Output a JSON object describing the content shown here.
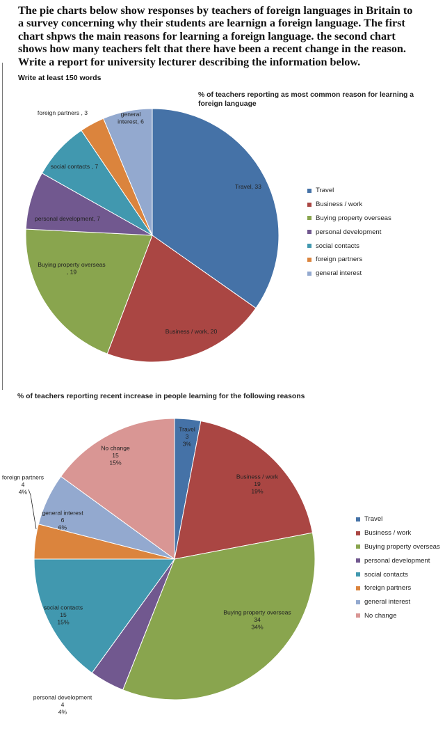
{
  "prompt": {
    "lines": [
      "The pie charts below show responses by teachers of foreign languages in Britain to",
      "a survey concerning why their students are learnign a foreign language. The first",
      "chart shpws the main reasons for learning a foreign language. the second chart",
      "shows how many teachers felt that there have been a recent change in the reason.",
      "Write a report for university lecturer describing the information below."
    ],
    "instruction": "Write at least 150 words"
  },
  "chart_data": [
    {
      "type": "pie",
      "title": "% of teachers reporting as most common reason for learning a foreign language",
      "categories": [
        "Travel",
        "Business / work",
        "Buying property overseas",
        "personal development",
        "social contacts",
        "foreign partners",
        "general interest"
      ],
      "values": [
        33,
        20,
        19,
        7,
        7,
        3,
        6
      ],
      "slice_labels": [
        [
          "Travel, 33"
        ],
        [
          "Business / work, 20"
        ],
        [
          "Buying property overseas",
          ", 19"
        ],
        [
          "personal development, 7"
        ],
        [
          "social contacts , 7"
        ],
        [
          "foreign partners , 3"
        ],
        [
          "general",
          "interest, 6"
        ]
      ],
      "colors": [
        "#4572a7",
        "#aa4643",
        "#89a54e",
        "#71588f",
        "#4198af",
        "#db843d",
        "#93a9cf"
      ],
      "legend": [
        "Travel",
        "Business / work",
        "Buying property overseas",
        "personal development",
        "social contacts",
        "foreign partners",
        "general interest"
      ],
      "legend_position": "right"
    },
    {
      "type": "pie",
      "title": "% of teachers reporting recent increase in people learning for the following reasons",
      "categories": [
        "Travel",
        "Business / work",
        "Buying property overseas",
        "personal development",
        "social contacts",
        "foreign partners",
        "general interest",
        "No change"
      ],
      "values": [
        3,
        19,
        34,
        4,
        15,
        4,
        6,
        15
      ],
      "slice_labels": [
        [
          "Travel",
          "3",
          "3%"
        ],
        [
          "Business / work",
          "19",
          "19%"
        ],
        [
          "Buying property overseas",
          "34",
          "34%"
        ],
        [
          "personal development",
          "4",
          "4%"
        ],
        [
          "social contacts",
          "15",
          "15%"
        ],
        [
          "foreign partners",
          "4",
          "4%"
        ],
        [
          "general interest",
          "6",
          "6%"
        ],
        [
          "No change",
          "15",
          "15%"
        ]
      ],
      "colors": [
        "#4572a7",
        "#aa4643",
        "#89a54e",
        "#71588f",
        "#4198af",
        "#db843d",
        "#93a9cf",
        "#d99694"
      ],
      "legend": [
        "Travel",
        "Business / work",
        "Buying property overseas",
        "personal development",
        "social contacts",
        "foreign partners",
        "general interest",
        "No change"
      ],
      "legend_position": "right"
    }
  ]
}
